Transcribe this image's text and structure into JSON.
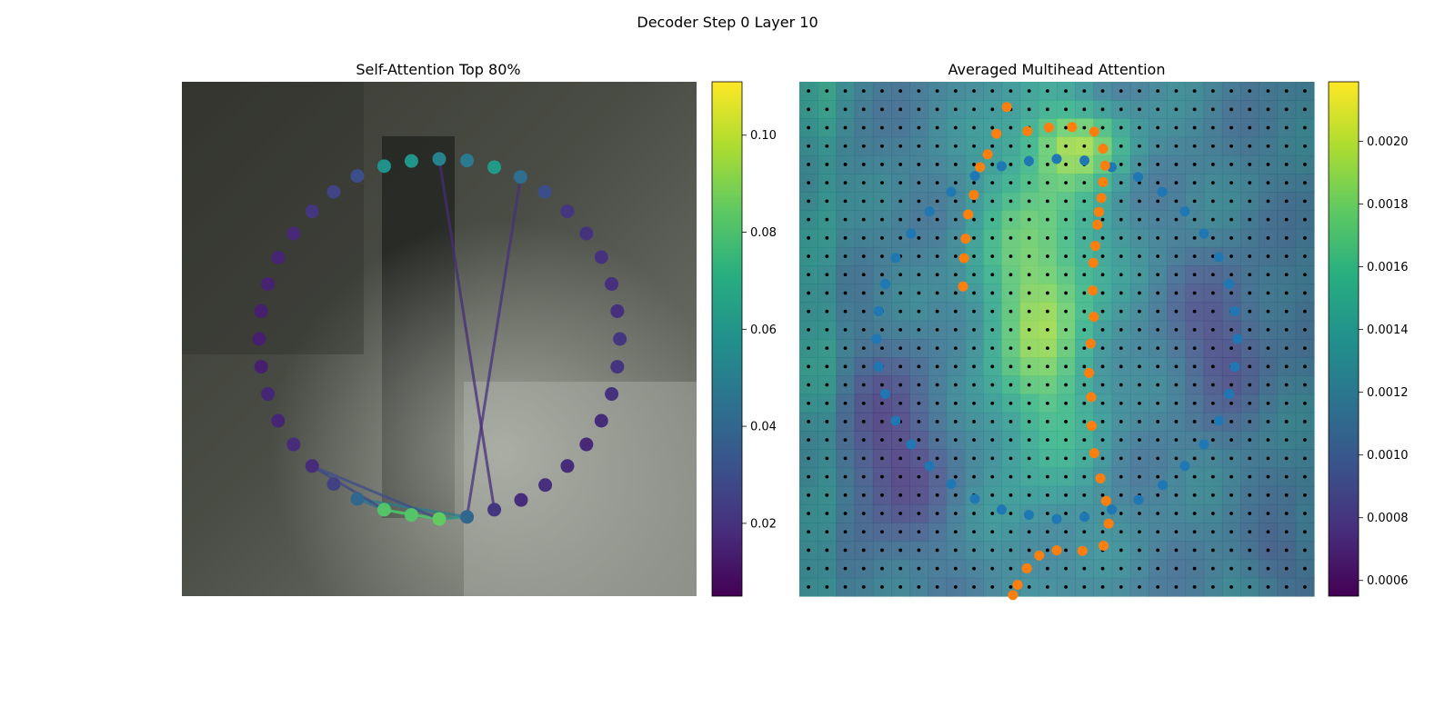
{
  "figure": {
    "title": "Decoder Step 0 Layer 10"
  },
  "chart_data": [
    {
      "type": "scatter",
      "title": "Self-Attention Top 80%",
      "grid": false,
      "xlim": [
        0,
        1
      ],
      "ylim": [
        0,
        1
      ],
      "colormap": "viridis",
      "colorbar": {
        "range": [
          0.005,
          0.111
        ],
        "ticks": [
          0.02,
          0.04,
          0.06,
          0.08,
          0.1
        ],
        "tick_labels": [
          "0.02",
          "0.04",
          "0.06",
          "0.08",
          "0.10"
        ]
      },
      "points": [
        {
          "x": 0.5,
          "y": 0.85,
          "v": 0.052
        },
        {
          "x": 0.554,
          "y": 0.847,
          "v": 0.048
        },
        {
          "x": 0.607,
          "y": 0.834,
          "v": 0.062
        },
        {
          "x": 0.658,
          "y": 0.815,
          "v": 0.043
        },
        {
          "x": 0.705,
          "y": 0.786,
          "v": 0.03
        },
        {
          "x": 0.749,
          "y": 0.748,
          "v": 0.022
        },
        {
          "x": 0.786,
          "y": 0.705,
          "v": 0.02
        },
        {
          "x": 0.815,
          "y": 0.659,
          "v": 0.02
        },
        {
          "x": 0.835,
          "y": 0.607,
          "v": 0.019
        },
        {
          "x": 0.846,
          "y": 0.554,
          "v": 0.019
        },
        {
          "x": 0.851,
          "y": 0.5,
          "v": 0.022
        },
        {
          "x": 0.846,
          "y": 0.446,
          "v": 0.021
        },
        {
          "x": 0.835,
          "y": 0.393,
          "v": 0.02
        },
        {
          "x": 0.815,
          "y": 0.341,
          "v": 0.018
        },
        {
          "x": 0.786,
          "y": 0.295,
          "v": 0.017
        },
        {
          "x": 0.749,
          "y": 0.253,
          "v": 0.018
        },
        {
          "x": 0.706,
          "y": 0.216,
          "v": 0.019
        },
        {
          "x": 0.659,
          "y": 0.187,
          "v": 0.018
        },
        {
          "x": 0.607,
          "y": 0.168,
          "v": 0.022
        },
        {
          "x": 0.554,
          "y": 0.154,
          "v": 0.04
        },
        {
          "x": 0.5,
          "y": 0.15,
          "v": 0.085
        },
        {
          "x": 0.446,
          "y": 0.158,
          "v": 0.082
        },
        {
          "x": 0.393,
          "y": 0.168,
          "v": 0.082
        },
        {
          "x": 0.341,
          "y": 0.189,
          "v": 0.04
        },
        {
          "x": 0.295,
          "y": 0.218,
          "v": 0.025
        },
        {
          "x": 0.253,
          "y": 0.253,
          "v": 0.018
        },
        {
          "x": 0.217,
          "y": 0.295,
          "v": 0.018
        },
        {
          "x": 0.187,
          "y": 0.341,
          "v": 0.016
        },
        {
          "x": 0.167,
          "y": 0.393,
          "v": 0.016
        },
        {
          "x": 0.154,
          "y": 0.446,
          "v": 0.014
        },
        {
          "x": 0.15,
          "y": 0.5,
          "v": 0.014
        },
        {
          "x": 0.154,
          "y": 0.554,
          "v": 0.014
        },
        {
          "x": 0.167,
          "y": 0.607,
          "v": 0.015
        },
        {
          "x": 0.187,
          "y": 0.658,
          "v": 0.016
        },
        {
          "x": 0.217,
          "y": 0.705,
          "v": 0.017
        },
        {
          "x": 0.253,
          "y": 0.748,
          "v": 0.022
        },
        {
          "x": 0.295,
          "y": 0.786,
          "v": 0.026
        },
        {
          "x": 0.341,
          "y": 0.817,
          "v": 0.03
        },
        {
          "x": 0.393,
          "y": 0.836,
          "v": 0.058
        },
        {
          "x": 0.446,
          "y": 0.846,
          "v": 0.06
        }
      ],
      "connections": [
        {
          "from": 20,
          "to": 21,
          "v": 0.085
        },
        {
          "from": 21,
          "to": 22,
          "v": 0.082
        },
        {
          "from": 20,
          "to": 22,
          "v": 0.08
        },
        {
          "from": 20,
          "to": 19,
          "v": 0.06
        },
        {
          "from": 22,
          "to": 23,
          "v": 0.045
        },
        {
          "from": 19,
          "to": 23,
          "v": 0.05
        },
        {
          "from": 20,
          "to": 25,
          "v": 0.03
        },
        {
          "from": 22,
          "to": 25,
          "v": 0.028
        },
        {
          "from": 19,
          "to": 3,
          "v": 0.02
        },
        {
          "from": 18,
          "to": 0,
          "v": 0.018
        }
      ]
    },
    {
      "type": "heatmap",
      "title": "Averaged Multihead Attention",
      "grid": false,
      "xlim": [
        0,
        1
      ],
      "ylim": [
        0,
        1
      ],
      "colormap": "viridis",
      "colorbar": {
        "range": [
          0.00055,
          0.00219
        ],
        "ticks": [
          0.0006,
          0.0008,
          0.001,
          0.0012,
          0.0014,
          0.0016,
          0.0018,
          0.002
        ],
        "tick_labels": [
          "0.0006",
          "0.0008",
          "0.0010",
          "0.0012",
          "0.0014",
          "0.0016",
          "0.0018",
          "0.0020"
        ]
      },
      "grid_points": 28,
      "series": [
        {
          "color": "#1f77b4",
          "points": [
            {
              "x": 0.5,
              "y": 0.85
            },
            {
              "x": 0.554,
              "y": 0.847
            },
            {
              "x": 0.607,
              "y": 0.834
            },
            {
              "x": 0.658,
              "y": 0.815
            },
            {
              "x": 0.705,
              "y": 0.786
            },
            {
              "x": 0.749,
              "y": 0.748
            },
            {
              "x": 0.786,
              "y": 0.705
            },
            {
              "x": 0.815,
              "y": 0.659
            },
            {
              "x": 0.835,
              "y": 0.607
            },
            {
              "x": 0.846,
              "y": 0.554
            },
            {
              "x": 0.851,
              "y": 0.5
            },
            {
              "x": 0.846,
              "y": 0.446
            },
            {
              "x": 0.835,
              "y": 0.393
            },
            {
              "x": 0.815,
              "y": 0.341
            },
            {
              "x": 0.786,
              "y": 0.295
            },
            {
              "x": 0.749,
              "y": 0.253
            },
            {
              "x": 0.706,
              "y": 0.216
            },
            {
              "x": 0.659,
              "y": 0.187
            },
            {
              "x": 0.607,
              "y": 0.168
            },
            {
              "x": 0.554,
              "y": 0.154
            },
            {
              "x": 0.5,
              "y": 0.15
            },
            {
              "x": 0.446,
              "y": 0.158
            },
            {
              "x": 0.393,
              "y": 0.168
            },
            {
              "x": 0.341,
              "y": 0.189
            },
            {
              "x": 0.295,
              "y": 0.218
            },
            {
              "x": 0.253,
              "y": 0.253
            },
            {
              "x": 0.217,
              "y": 0.295
            },
            {
              "x": 0.187,
              "y": 0.341
            },
            {
              "x": 0.167,
              "y": 0.393
            },
            {
              "x": 0.154,
              "y": 0.446
            },
            {
              "x": 0.15,
              "y": 0.5
            },
            {
              "x": 0.154,
              "y": 0.554
            },
            {
              "x": 0.167,
              "y": 0.607
            },
            {
              "x": 0.187,
              "y": 0.658
            },
            {
              "x": 0.217,
              "y": 0.705
            },
            {
              "x": 0.253,
              "y": 0.748
            },
            {
              "x": 0.295,
              "y": 0.786
            },
            {
              "x": 0.341,
              "y": 0.817
            },
            {
              "x": 0.393,
              "y": 0.836
            },
            {
              "x": 0.446,
              "y": 0.846
            }
          ]
        },
        {
          "color": "#ff7f0e",
          "points": [
            {
              "x": 0.443,
              "y": 0.904
            },
            {
              "x": 0.485,
              "y": 0.911
            },
            {
              "x": 0.53,
              "y": 0.912
            },
            {
              "x": 0.573,
              "y": 0.903
            },
            {
              "x": 0.59,
              "y": 0.87
            },
            {
              "x": 0.594,
              "y": 0.837
            },
            {
              "x": 0.59,
              "y": 0.805
            },
            {
              "x": 0.587,
              "y": 0.774
            },
            {
              "x": 0.582,
              "y": 0.747
            },
            {
              "x": 0.579,
              "y": 0.722
            },
            {
              "x": 0.575,
              "y": 0.681
            },
            {
              "x": 0.571,
              "y": 0.648
            },
            {
              "x": 0.57,
              "y": 0.594
            },
            {
              "x": 0.572,
              "y": 0.543
            },
            {
              "x": 0.566,
              "y": 0.491
            },
            {
              "x": 0.563,
              "y": 0.434
            },
            {
              "x": 0.567,
              "y": 0.387
            },
            {
              "x": 0.568,
              "y": 0.331
            },
            {
              "x": 0.573,
              "y": 0.278
            },
            {
              "x": 0.585,
              "y": 0.229
            },
            {
              "x": 0.596,
              "y": 0.185
            },
            {
              "x": 0.601,
              "y": 0.141
            },
            {
              "x": 0.591,
              "y": 0.098
            },
            {
              "x": 0.55,
              "y": 0.088
            },
            {
              "x": 0.5,
              "y": 0.089
            },
            {
              "x": 0.466,
              "y": 0.079
            },
            {
              "x": 0.442,
              "y": 0.054
            },
            {
              "x": 0.424,
              "y": 0.022
            },
            {
              "x": 0.415,
              "y": 0.002
            },
            {
              "x": 0.403,
              "y": 0.951
            },
            {
              "x": 0.383,
              "y": 0.899
            },
            {
              "x": 0.366,
              "y": 0.859
            },
            {
              "x": 0.351,
              "y": 0.834
            },
            {
              "x": 0.339,
              "y": 0.78
            },
            {
              "x": 0.328,
              "y": 0.742
            },
            {
              "x": 0.323,
              "y": 0.695
            },
            {
              "x": 0.32,
              "y": 0.657
            },
            {
              "x": 0.318,
              "y": 0.602
            }
          ]
        }
      ]
    }
  ]
}
